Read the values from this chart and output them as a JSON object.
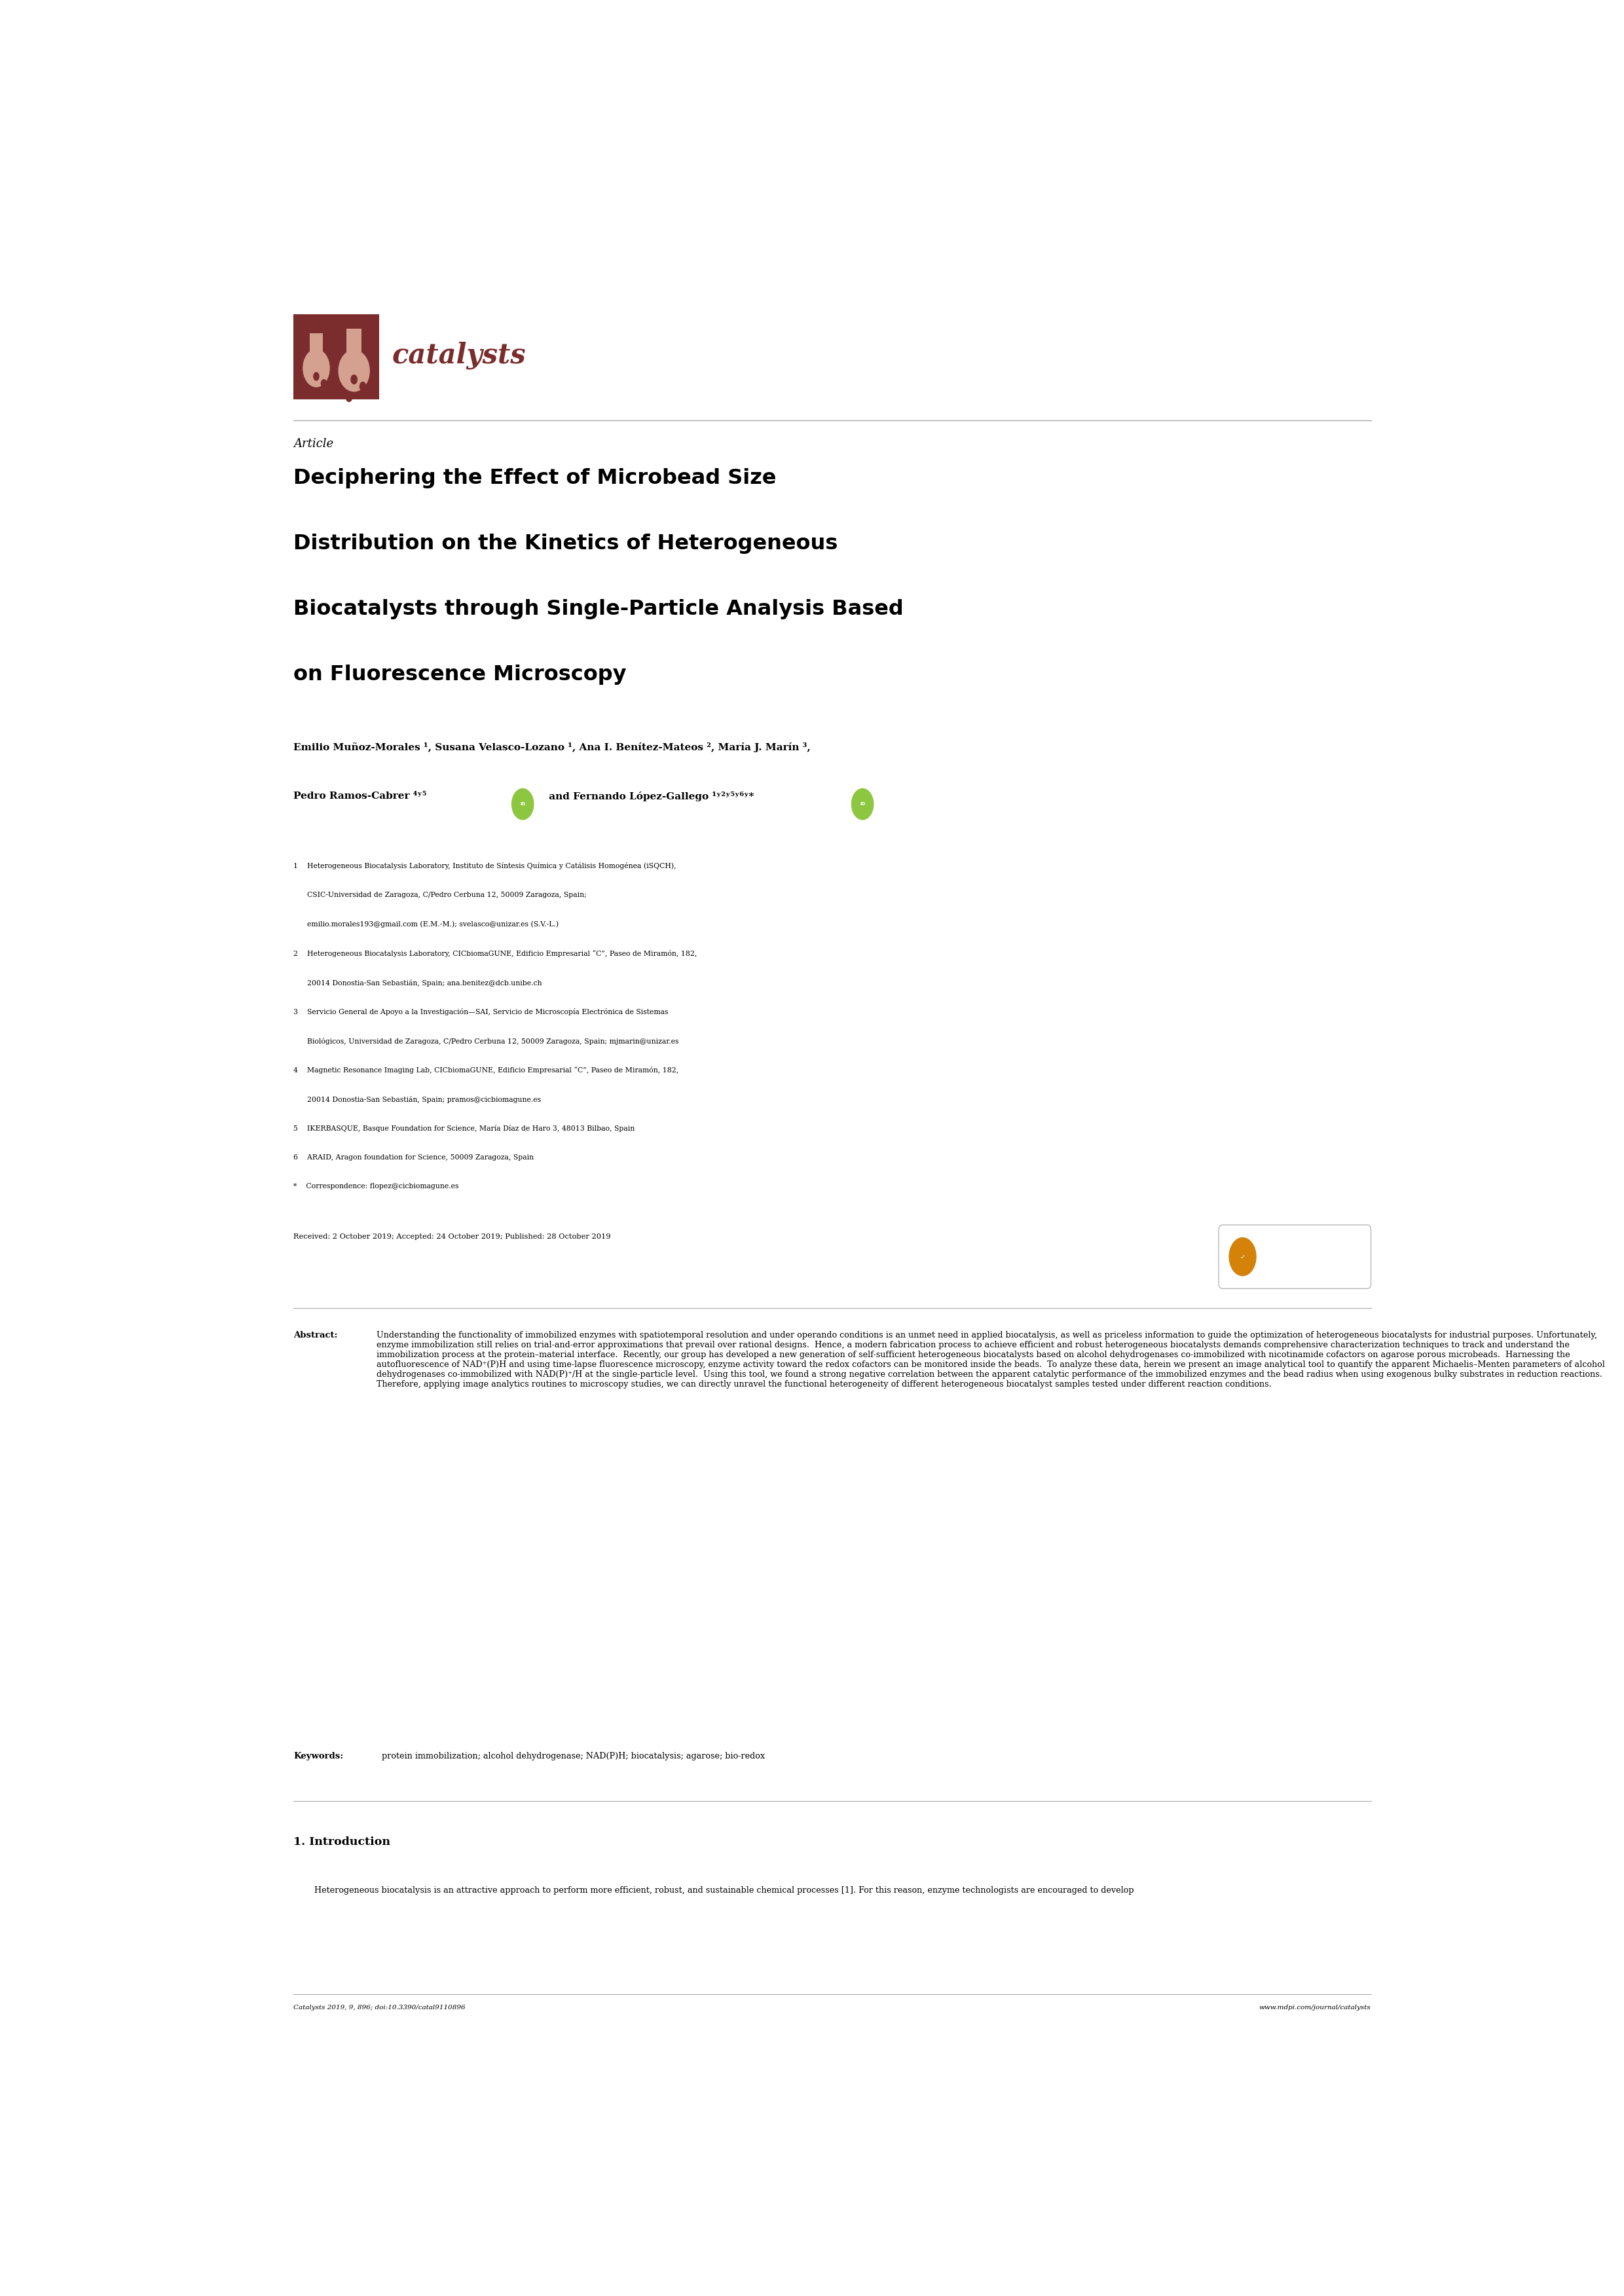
{
  "background_color": "#ffffff",
  "logo_color": "#7B2D2D",
  "logo_text": "catalysts",
  "logo_text_color": "#7B2D2D",
  "article_label": "Article",
  "title_line1": "Deciphering the Effect of Microbead Size",
  "title_line2": "Distribution on the Kinetics of Heterogeneous",
  "title_line3": "Biocatalysts through Single-Particle Analysis Based",
  "title_line4": "on Fluorescence Microscopy",
  "aff1": "1    Heterogeneous Biocatalysis Laboratory, Instituto de Síntesis Química y Catálisis Homogénea (iSQCH),",
  "aff1b": "      CSIC-Universidad de Zaragoza, C/Pedro Cerbuna 12, 50009 Zaragoza, Spain;",
  "aff1c": "      emilio.morales193@gmail.com (E.M.-M.); svelasco@unizar.es (S.V.-L.)",
  "aff2": "2    Heterogeneous Biocatalysis Laboratory, CICbiomaGUNE, Edificio Empresarial “C”, Paseo de Miramón, 182,",
  "aff2b": "      20014 Donostia-San Sebastián, Spain; ana.benitez@dcb.unibe.ch",
  "aff3": "3    Servicio General de Apoyo a la Investigación—SAI, Servicio de Microscopía Electrónica de Sistemas",
  "aff3b": "      Biológicos, Universidad de Zaragoza, C/Pedro Cerbuna 12, 50009 Zaragoza, Spain; mjmarin@unizar.es",
  "aff4": "4    Magnetic Resonance Imaging Lab, CICbiomaGUNE, Edificio Empresarial “C”, Paseo de Miramón, 182,",
  "aff4b": "      20014 Donostia-San Sebastián, Spain; pramos@cicbiomagune.es",
  "aff5": "5    IKERBASQUE, Basque Foundation for Science, María Díaz de Haro 3, 48013 Bilbao, Spain",
  "aff6": "6    ARAID, Aragon foundation for Science, 50009 Zaragoza, Spain",
  "aff_star": "*    Correspondence: flopez@cicbiomagune.es",
  "received": "Received: 2 October 2019; Accepted: 24 October 2019; Published: 28 October 2019",
  "abstract_body": "Understanding the functionality of immobilized enzymes with spatiotemporal resolution and under operando conditions is an unmet need in applied biocatalysis, as well as priceless information to guide the optimization of heterogeneous biocatalysts for industrial purposes. Unfortunately, enzyme immobilization still relies on trial-and-error approximations that prevail over rational designs.  Hence, a modern fabrication process to achieve efficient and robust heterogeneous biocatalysts demands comprehensive characterization techniques to track and understand the immobilization process at the protein–material interface.  Recently, our group has developed a new generation of self-sufficient heterogeneous biocatalysts based on alcohol dehydrogenases co-immobilized with nicotinamide cofactors on agarose porous microbeads.  Harnessing the autofluorescence of NAD⁺(P)H and using time-lapse fluorescence microscopy, enzyme activity toward the redox cofactors can be monitored inside the beads.  To analyze these data, herein we present an image analytical tool to quantify the apparent Michaelis–Menten parameters of alcohol dehydrogenases co-immobilized with NAD(P)⁺/H at the single-particle level.  Using this tool, we found a strong negative correlation between the apparent catalytic performance of the immobilized enzymes and the bead radius when using exogenous bulky substrates in reduction reactions. Therefore, applying image analytics routines to microscopy studies, we can directly unravel the functional heterogeneity of different heterogeneous biocatalyst samples tested under different reaction conditions.",
  "keywords_text": "protein immobilization; alcohol dehydrogenase; NAD(P)H; biocatalysis; agarose; bio-redox",
  "intro_header": "1. Introduction",
  "intro_text": "        Heterogeneous biocatalysis is an attractive approach to perform more efficient, robust, and sustainable chemical processes [1]. For this reason, enzyme technologists are encouraged to develop",
  "footer_left": "Catalysts 2019, 9, 896; doi:10.3390/catal9110896",
  "footer_right": "www.mdpi.com/journal/catalysts",
  "orcid_color": "#8DC63F",
  "divider_color": "#aaaaaa",
  "text_color": "#000000"
}
